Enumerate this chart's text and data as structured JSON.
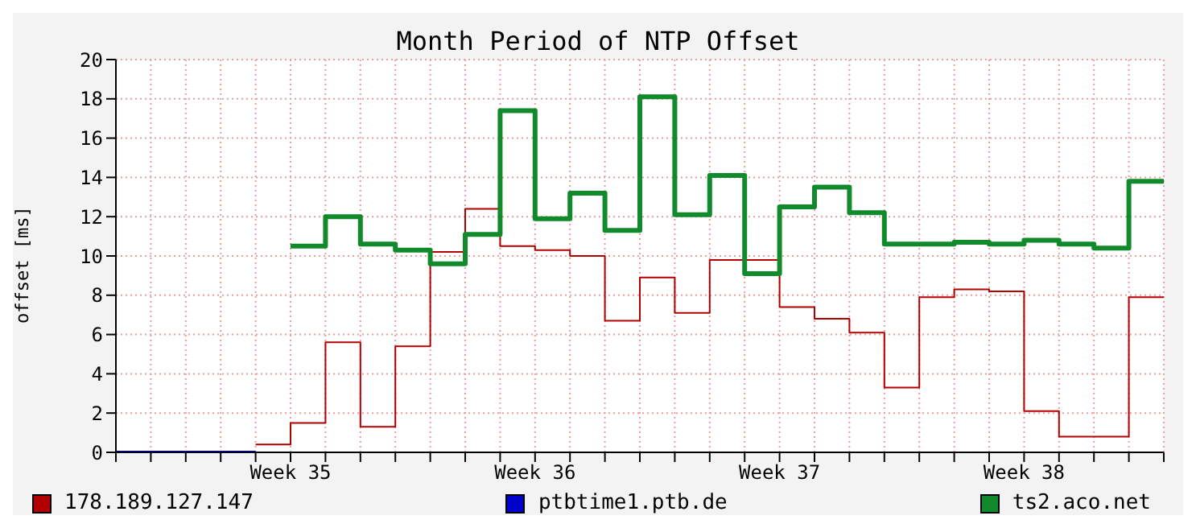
{
  "chart_data": {
    "type": "step",
    "title": "Month Period of NTP Offset",
    "ylabel": "offset [ms]",
    "categories": [
      null,
      null,
      null,
      null,
      null,
      "Week 35",
      null,
      null,
      null,
      null,
      null,
      null,
      "Week 36",
      null,
      null,
      null,
      null,
      null,
      null,
      "Week 37",
      null,
      null,
      null,
      null,
      null,
      null,
      "Week 38",
      null,
      null,
      null,
      null
    ],
    "ylim": [
      0,
      20
    ],
    "yticks": [
      0,
      2,
      4,
      6,
      8,
      10,
      12,
      14,
      16,
      18,
      20
    ],
    "grid": true,
    "legend": "bottom",
    "series": [
      {
        "name": "178.189.127.147",
        "color": "#b20000",
        "values": [
          null,
          null,
          null,
          null,
          0.4,
          1.5,
          5.6,
          1.3,
          5.4,
          10.2,
          12.4,
          10.5,
          10.3,
          10.0,
          6.7,
          8.9,
          7.1,
          9.8,
          9.8,
          7.4,
          6.8,
          6.1,
          3.3,
          7.9,
          8.3,
          8.2,
          2.1,
          0.8,
          0.8,
          7.9,
          7.9
        ]
      },
      {
        "name": "ptbtime1.ptb.de",
        "color": "#0000cc",
        "values": [
          0,
          0,
          0,
          0,
          0,
          null,
          null,
          null,
          null,
          null,
          null,
          null,
          null,
          null,
          null,
          null,
          null,
          null,
          null,
          null,
          null,
          null,
          null,
          null,
          null,
          null,
          null,
          null,
          null,
          null,
          null
        ]
      },
      {
        "name": "ts2.aco.net",
        "color": "#108a2a",
        "values": [
          null,
          null,
          null,
          null,
          null,
          10.5,
          12.0,
          10.6,
          10.3,
          9.6,
          11.1,
          17.4,
          11.9,
          13.2,
          11.3,
          18.1,
          12.1,
          14.1,
          9.1,
          12.5,
          13.5,
          12.2,
          10.6,
          10.6,
          10.7,
          10.6,
          10.8,
          10.6,
          10.4,
          13.8,
          13.8
        ]
      }
    ]
  }
}
